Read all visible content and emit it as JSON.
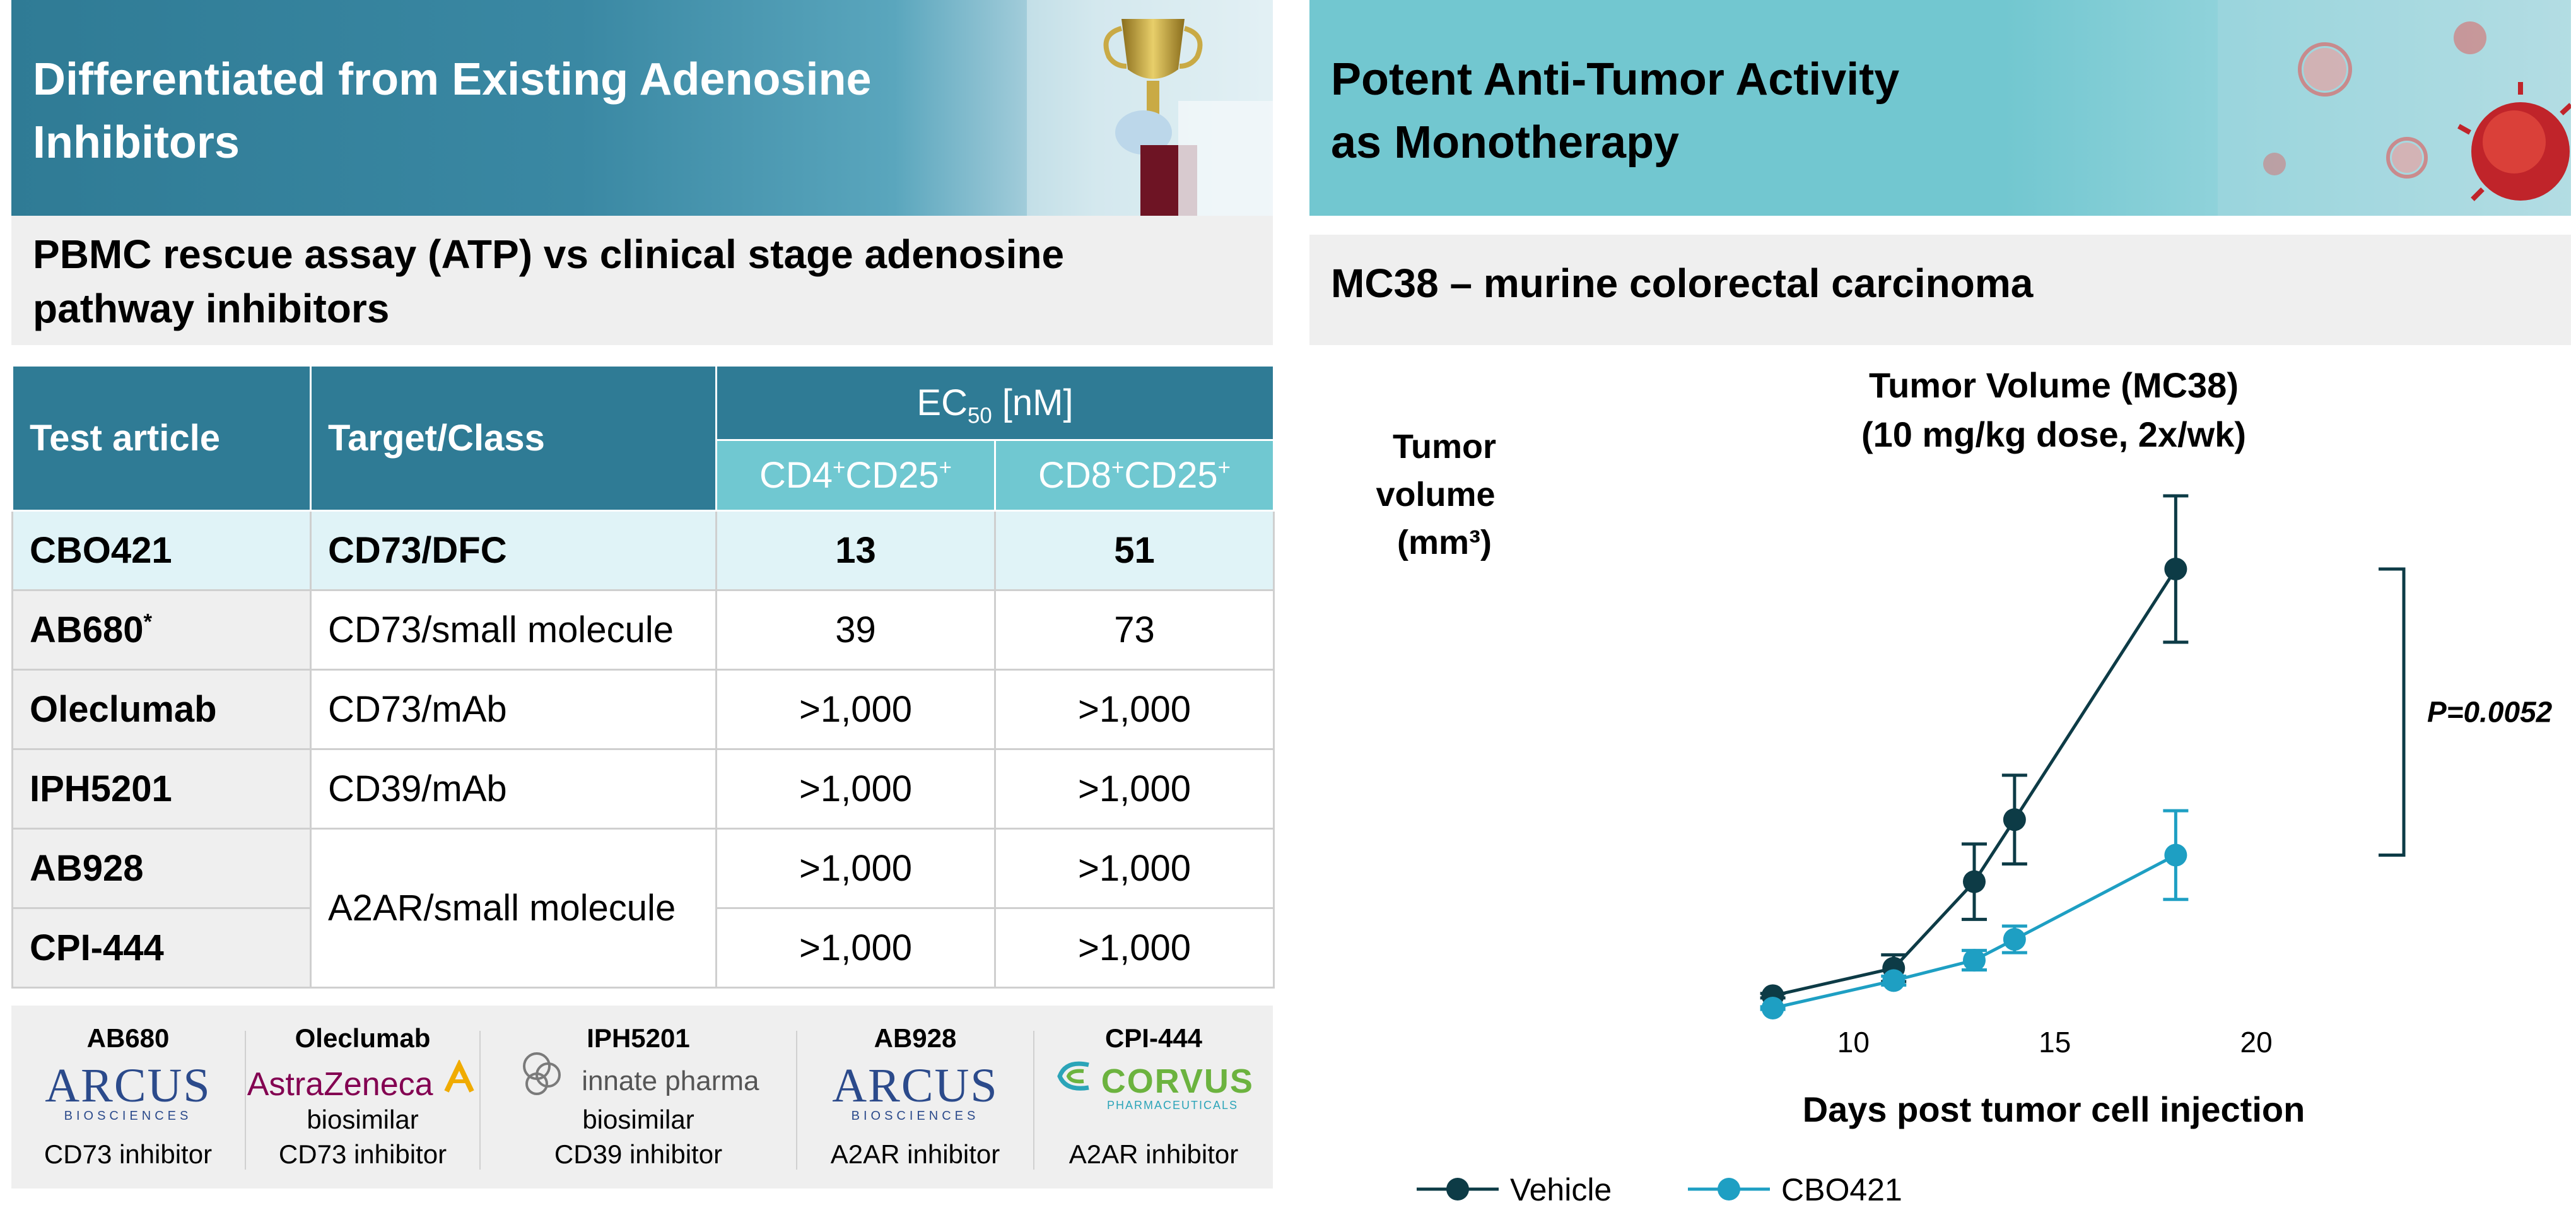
{
  "left": {
    "header_title_line1": "Differentiated from Existing Adenosine",
    "header_title_line2": "Inhibitors",
    "subheader_line1": "PBMC rescue assay (ATP) vs clinical stage adenosine",
    "subheader_line2": "pathway inhibitors",
    "table": {
      "col_test_article": "Test article",
      "col_target": "Target/Class",
      "col_ec50": "EC",
      "col_ec50_sub": "50",
      "col_ec50_unit": " [nM]",
      "col_cd4_a": "CD4",
      "col_cd4_b": "CD25",
      "col_cd8_a": "CD8",
      "col_cd8_b": "CD25",
      "plus": "+",
      "rows": [
        {
          "article": "CBO421",
          "target": "CD73/DFC",
          "cd4": "13",
          "cd8": "51"
        },
        {
          "article": "AB680",
          "mark": "*",
          "target": "CD73/small molecule",
          "cd4": "39",
          "cd8": "73"
        },
        {
          "article": "Oleclumab",
          "target": "CD73/mAb",
          "cd4": ">1,000",
          "cd8": ">1,000"
        },
        {
          "article": "IPH5201",
          "target": "CD39/mAb",
          "cd4": ">1,000",
          "cd8": ">1,000"
        },
        {
          "article": "AB928",
          "target": "A2AR/small molecule",
          "cd4": ">1,000",
          "cd8": ">1,000"
        },
        {
          "article": "CPI-444",
          "cd4": ">1,000",
          "cd8": ">1,000"
        }
      ]
    },
    "logos": [
      {
        "name": "AB680",
        "brand": "ARCUS",
        "brand_sub": "BIOSCIENCES",
        "desc": "CD73 inhibitor"
      },
      {
        "name": "Oleclumab",
        "brand": "AstraZeneca",
        "desc1": "biosimilar",
        "desc": "CD73 inhibitor"
      },
      {
        "name": "IPH5201",
        "brand": "innate pharma",
        "desc1": "biosimilar",
        "desc": "CD39 inhibitor"
      },
      {
        "name": "AB928",
        "brand": "ARCUS",
        "brand_sub": "BIOSCIENCES",
        "desc": "A2AR inhibitor"
      },
      {
        "name": "CPI-444",
        "brand": "CORVUS",
        "brand_sub": "PHARMACEUTICALS",
        "desc": "A2AR inhibitor"
      }
    ]
  },
  "right": {
    "header_title_line1": "Potent Anti-Tumor Activity",
    "header_title_line2": "as Monotherapy",
    "subheader": "MC38 – murine colorectal carcinoma"
  },
  "colors": {
    "teal_dark": "#2f7b95",
    "teal_light": "#70c8d1",
    "vehicle": "#0d3b46",
    "cbo421": "#1e9fc3"
  },
  "chart_data": {
    "type": "line",
    "title_line1": "Tumor Volume (MC38)",
    "title_line2": "(10 mg/kg dose, 2x/wk)",
    "ylabel_line1": "Tumor",
    "ylabel_line2": "volume",
    "ylabel_line3": "(mm³)",
    "xlabel": "Days post tumor cell injection",
    "xlim": [
      5,
      21
    ],
    "ylim": [
      0,
      1000
    ],
    "xticks": [
      "10",
      "15",
      "20"
    ],
    "annotation": "P=0.0052",
    "series": [
      {
        "name": "Vehicle",
        "x": [
          8,
          11,
          13,
          14,
          18
        ],
        "y": [
          28,
          90,
          285,
          425,
          990
        ],
        "err": [
          5,
          30,
          85,
          100,
          165
        ]
      },
      {
        "name": "CBO421",
        "x": [
          8,
          11,
          13,
          14,
          18
        ],
        "y": [
          0,
          62,
          108,
          155,
          345
        ],
        "err": [
          3,
          10,
          22,
          30,
          100
        ]
      }
    ]
  }
}
